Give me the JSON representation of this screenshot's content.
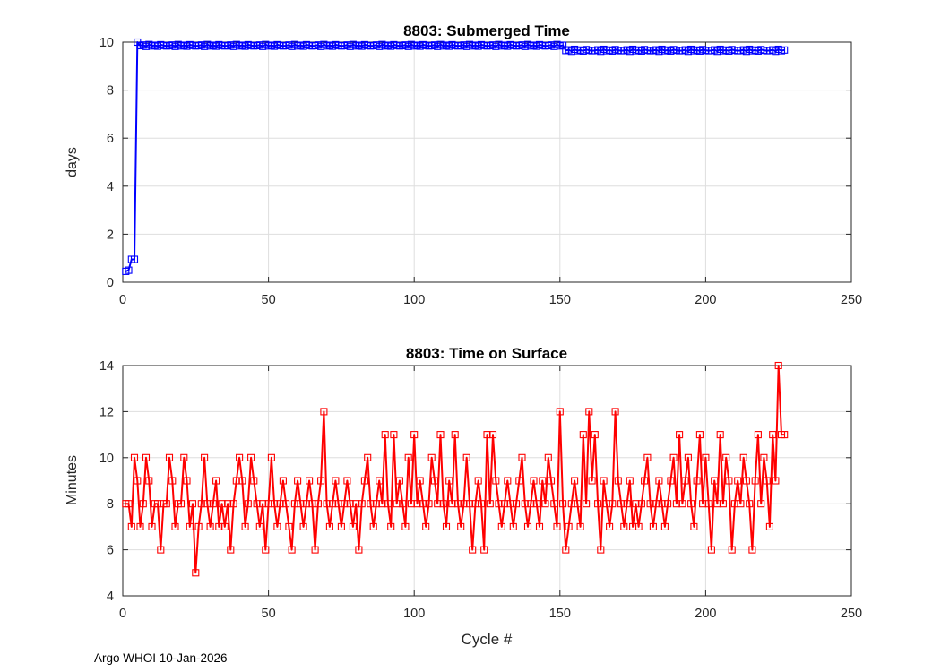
{
  "page": {
    "footer": "Argo WHOI 10-Jan-2026"
  },
  "colors": {
    "grid": "#dedede",
    "axis": "#262626",
    "series_top": "#0000ff",
    "series_bottom": "#ff0000"
  },
  "chart_data": [
    {
      "type": "line",
      "title": "8803: Submerged Time",
      "xlabel": "",
      "ylabel": "days",
      "xlim": [
        0,
        250
      ],
      "ylim": [
        0,
        10
      ],
      "xticks": [
        0,
        50,
        100,
        150,
        200,
        250
      ],
      "yticks": [
        0,
        2,
        4,
        6,
        8,
        10
      ],
      "grid": true,
      "legend": "none",
      "marker": "square",
      "color": "#0000ff",
      "x_start": 1,
      "x_step": 1,
      "values": [
        0.45,
        0.5,
        0.95,
        0.95,
        10,
        9.85,
        9.88,
        9.82,
        9.9,
        9.84,
        9.87,
        9.83,
        9.89,
        9.86,
        9.84,
        9.85,
        9.88,
        9.82,
        9.9,
        9.84,
        9.87,
        9.83,
        9.89,
        9.86,
        9.84,
        9.85,
        9.88,
        9.82,
        9.9,
        9.84,
        9.87,
        9.83,
        9.89,
        9.86,
        9.84,
        9.85,
        9.88,
        9.82,
        9.9,
        9.84,
        9.87,
        9.83,
        9.89,
        9.86,
        9.84,
        9.85,
        9.88,
        9.82,
        9.9,
        9.84,
        9.87,
        9.83,
        9.89,
        9.86,
        9.84,
        9.85,
        9.88,
        9.82,
        9.9,
        9.84,
        9.87,
        9.83,
        9.89,
        9.86,
        9.84,
        9.85,
        9.88,
        9.82,
        9.9,
        9.84,
        9.87,
        9.83,
        9.89,
        9.86,
        9.84,
        9.85,
        9.88,
        9.82,
        9.9,
        9.84,
        9.87,
        9.83,
        9.89,
        9.86,
        9.84,
        9.85,
        9.88,
        9.82,
        9.9,
        9.84,
        9.87,
        9.83,
        9.89,
        9.86,
        9.84,
        9.85,
        9.88,
        9.82,
        9.9,
        9.84,
        9.87,
        9.83,
        9.89,
        9.86,
        9.84,
        9.85,
        9.88,
        9.82,
        9.9,
        9.84,
        9.87,
        9.83,
        9.89,
        9.86,
        9.84,
        9.85,
        9.88,
        9.82,
        9.9,
        9.84,
        9.87,
        9.83,
        9.89,
        9.86,
        9.84,
        9.85,
        9.88,
        9.82,
        9.9,
        9.84,
        9.87,
        9.83,
        9.89,
        9.86,
        9.84,
        9.85,
        9.88,
        9.82,
        9.9,
        9.84,
        9.87,
        9.83,
        9.89,
        9.86,
        9.84,
        9.85,
        9.88,
        9.82,
        9.9,
        9.84,
        9.87,
        9.65,
        9.68,
        9.62,
        9.7,
        9.64,
        9.67,
        9.63,
        9.69,
        9.66,
        9.64,
        9.65,
        9.68,
        9.62,
        9.7,
        9.64,
        9.67,
        9.63,
        9.69,
        9.66,
        9.64,
        9.65,
        9.68,
        9.62,
        9.7,
        9.64,
        9.67,
        9.63,
        9.69,
        9.66,
        9.64,
        9.65,
        9.68,
        9.62,
        9.7,
        9.64,
        9.67,
        9.63,
        9.69,
        9.66,
        9.64,
        9.65,
        9.68,
        9.62,
        9.7,
        9.64,
        9.67,
        9.63,
        9.69,
        9.66,
        9.64,
        9.65,
        9.68,
        9.62,
        9.7,
        9.64,
        9.67,
        9.63,
        9.69,
        9.66,
        9.64,
        9.65,
        9.68,
        9.62,
        9.7,
        9.64,
        9.67,
        9.63,
        9.69,
        9.66,
        9.64,
        9.65,
        9.68,
        9.62,
        9.7,
        9.64,
        9.67
      ]
    },
    {
      "type": "line",
      "title": "8803: Time on Surface",
      "xlabel": "Cycle #",
      "ylabel": "Minutes",
      "xlim": [
        0,
        250
      ],
      "ylim": [
        4,
        14
      ],
      "xticks": [
        0,
        50,
        100,
        150,
        200,
        250
      ],
      "yticks": [
        4,
        6,
        8,
        10,
        12,
        14
      ],
      "grid": true,
      "legend": "none",
      "marker": "square",
      "color": "#ff0000",
      "x_start": 1,
      "x_step": 1,
      "values": [
        8,
        8,
        7,
        10,
        9,
        7,
        8,
        10,
        9,
        7,
        8,
        8,
        6,
        8,
        8,
        10,
        9,
        7,
        8,
        8,
        10,
        9,
        7,
        8,
        5,
        7,
        8,
        10,
        8,
        7,
        8,
        9,
        7,
        8,
        7,
        8,
        6,
        8,
        9,
        10,
        9,
        7,
        8,
        10,
        9,
        8,
        7,
        8,
        6,
        8,
        10,
        8,
        7,
        8,
        9,
        8,
        7,
        6,
        8,
        9,
        8,
        7,
        8,
        9,
        8,
        6,
        8,
        9,
        12,
        8,
        7,
        8,
        9,
        8,
        7,
        8,
        9,
        8,
        7,
        8,
        6,
        8,
        9,
        10,
        8,
        7,
        8,
        9,
        8,
        11,
        8,
        7,
        11,
        8,
        9,
        8,
        7,
        10,
        8,
        11,
        8,
        9,
        8,
        7,
        8,
        10,
        9,
        8,
        11,
        8,
        7,
        9,
        8,
        11,
        8,
        7,
        8,
        10,
        8,
        6,
        8,
        9,
        8,
        6,
        11,
        8,
        11,
        9,
        8,
        7,
        8,
        9,
        8,
        7,
        8,
        9,
        10,
        8,
        7,
        8,
        9,
        8,
        7,
        9,
        8,
        10,
        9,
        8,
        7,
        12,
        8,
        6,
        7,
        8,
        9,
        8,
        7,
        11,
        8,
        12,
        9,
        11,
        8,
        6,
        9,
        8,
        7,
        8,
        12,
        9,
        8,
        7,
        8,
        9,
        7,
        8,
        7,
        8,
        9,
        10,
        8,
        7,
        8,
        9,
        8,
        7,
        8,
        9,
        10,
        8,
        11,
        8,
        9,
        10,
        8,
        7,
        9,
        11,
        8,
        10,
        8,
        6,
        9,
        8,
        11,
        8,
        10,
        9,
        6,
        8,
        9,
        8,
        10,
        9,
        8,
        6,
        9,
        11,
        8,
        10,
        9,
        7,
        11,
        9,
        14,
        11,
        11
      ]
    }
  ]
}
